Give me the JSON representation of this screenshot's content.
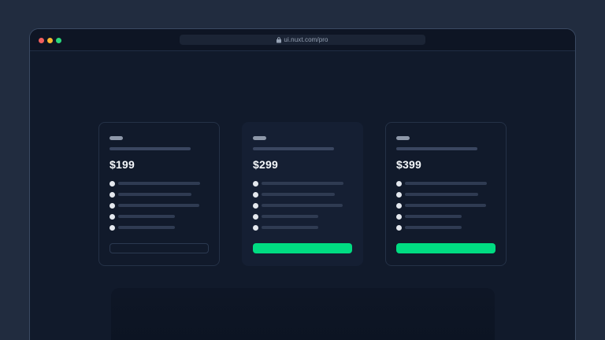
{
  "browser": {
    "url": "ui.nuxt.com/pro",
    "traffic_lights": [
      {
        "name": "close",
        "color": "#f2605e"
      },
      {
        "name": "minimize",
        "color": "#f7b731"
      },
      {
        "name": "zoom",
        "color": "#2bd97c"
      }
    ]
  },
  "pricing": {
    "accent_color": "#00dc82",
    "cards": [
      {
        "name": "tier-1",
        "price": "$199",
        "highlighted": false,
        "cta_style": "outline",
        "feature_line_widths": [
          104,
          93,
          103,
          72,
          72
        ]
      },
      {
        "name": "tier-2",
        "price": "$299",
        "highlighted": true,
        "cta_style": "solid",
        "feature_line_widths": [
          104,
          93,
          103,
          72,
          72
        ]
      },
      {
        "name": "tier-3",
        "price": "$399",
        "highlighted": false,
        "cta_style": "solid",
        "feature_line_widths": [
          104,
          93,
          103,
          72,
          72
        ]
      }
    ]
  }
}
